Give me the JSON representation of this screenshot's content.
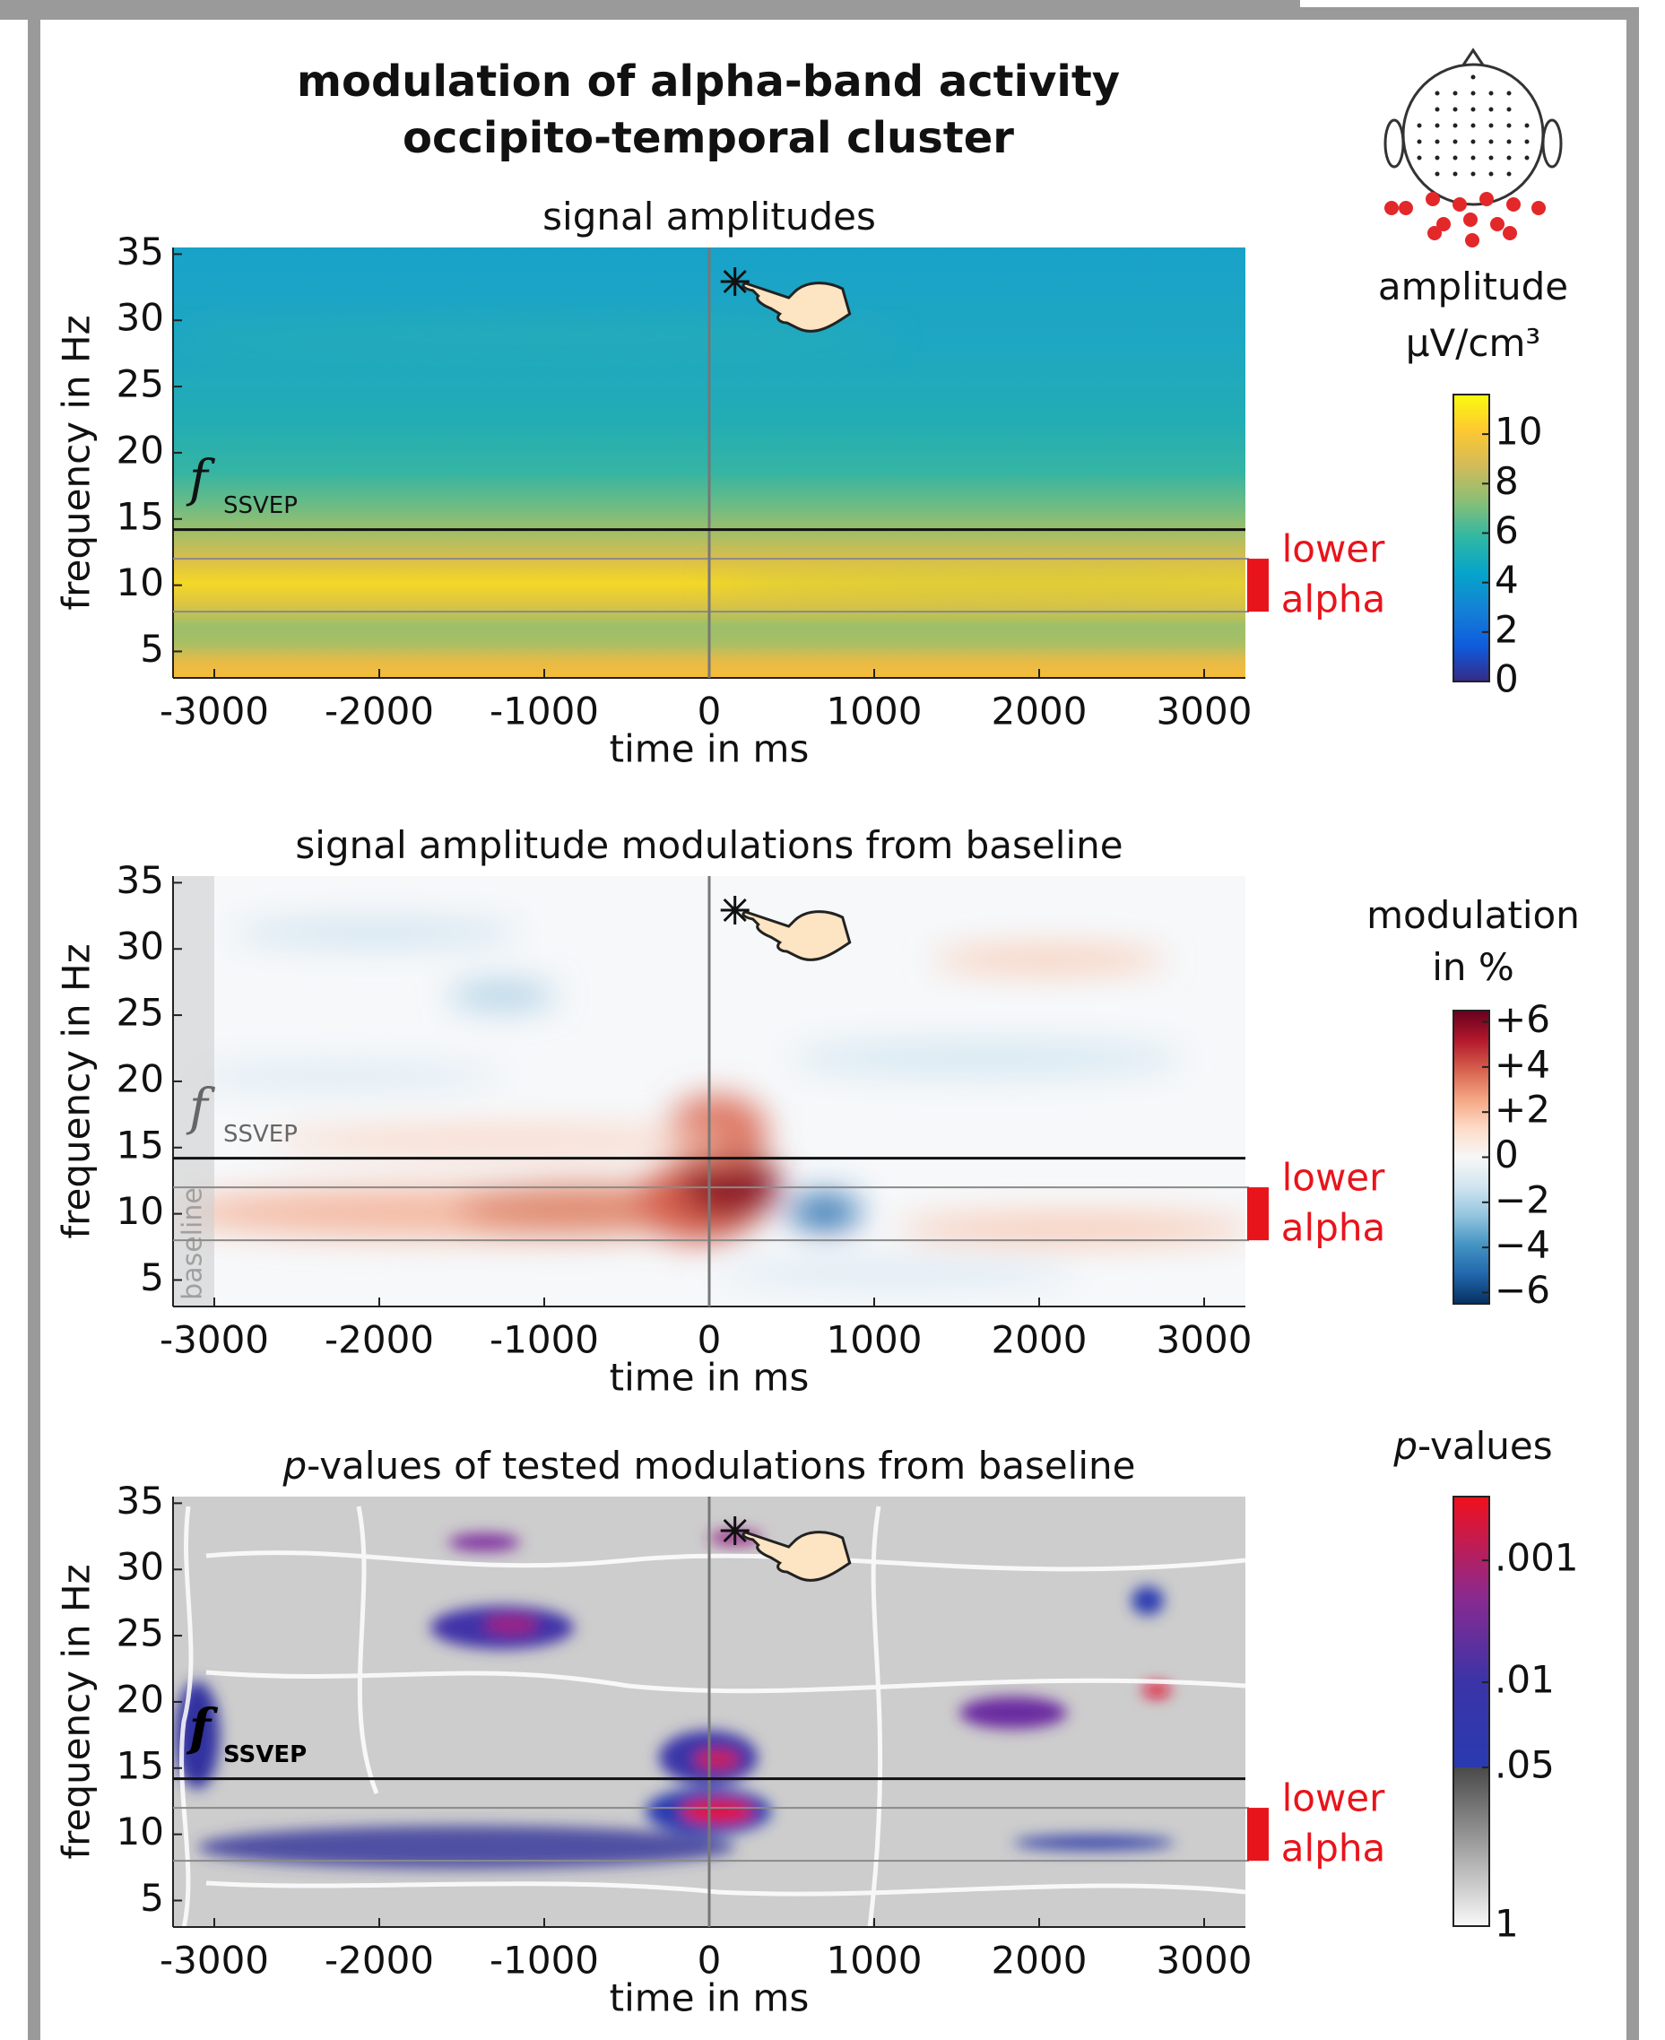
{
  "title": [
    "modulation of alpha-band activity",
    "occipito-temporal cluster"
  ],
  "chart_data": [
    {
      "type": "heatmap",
      "title": "signal amplitudes",
      "xlabel": "time in ms",
      "ylabel": "frequency in Hz",
      "xlim": [
        -3250,
        3250
      ],
      "ylim": [
        3,
        35.5
      ],
      "xticks": [
        -3000,
        -2000,
        -1000,
        0,
        1000,
        2000,
        3000
      ],
      "yticks": [
        5,
        10,
        15,
        20,
        25,
        30,
        35
      ],
      "event_ms": 0,
      "ssvep_hz": 14.2,
      "ssvep_label": "f",
      "ssvep_subscript": "SSVEP",
      "annotation_color": "#111111",
      "band_hz": [
        8,
        12
      ],
      "band_label": [
        "lower",
        "alpha"
      ],
      "band_color": "#e8141b",
      "colorbar": {
        "label": [
          "amplitude",
          "μV/cm³"
        ],
        "lim": [
          0,
          11.6
        ],
        "ticks": [
          0,
          2,
          4,
          6,
          8,
          10
        ],
        "colors": [
          "#352a87",
          "#0f5cdd",
          "#1481d6",
          "#06a4ca",
          "#2eb7a4",
          "#87bf77",
          "#d1bb59",
          "#fec832",
          "#f9fb0e"
        ]
      }
    },
    {
      "type": "heatmap",
      "title": "signal amplitude modulations from baseline",
      "xlabel": "time in ms",
      "ylabel": "frequency in Hz",
      "xlim": [
        -3250,
        3250
      ],
      "ylim": [
        3,
        35.5
      ],
      "xticks": [
        -3000,
        -2000,
        -1000,
        0,
        1000,
        2000,
        3000
      ],
      "yticks": [
        5,
        10,
        15,
        20,
        25,
        30,
        35
      ],
      "event_ms": 0,
      "ssvep_hz": 14.2,
      "ssvep_label": "f",
      "ssvep_subscript": "SSVEP",
      "annotation_color": "#666666",
      "band_hz": [
        8,
        12
      ],
      "band_label": [
        "lower",
        "alpha"
      ],
      "band_color": "#e8141b",
      "baseline_ms": [
        -3250,
        -3000
      ],
      "baseline_label": "baseline",
      "colorbar": {
        "label": [
          "modulation",
          "in %"
        ],
        "lim": [
          -6.5,
          6.5
        ],
        "ticks": [
          {
            "value": 6,
            "label": "+6"
          },
          {
            "value": 4,
            "label": "+4"
          },
          {
            "value": 2,
            "label": "+2"
          },
          0,
          {
            "value": -2,
            "label": "−2"
          },
          {
            "value": -4,
            "label": "−4"
          },
          {
            "value": -6,
            "label": "−6"
          }
        ],
        "colors": [
          "#053061",
          "#2166ac",
          "#4393c3",
          "#92c5de",
          "#d1e5f0",
          "#f7f7f7",
          "#fddbc7",
          "#f4a582",
          "#d6604d",
          "#b2182b",
          "#67001f"
        ]
      }
    },
    {
      "type": "heatmap",
      "title_italic": "p",
      "title": "-values of tested modulations from baseline",
      "xlabel": "time in ms",
      "ylabel": "frequency in Hz",
      "xlim": [
        -3250,
        3250
      ],
      "ylim": [
        3,
        35.5
      ],
      "xticks": [
        -3000,
        -2000,
        -1000,
        0,
        1000,
        2000,
        3000
      ],
      "yticks": [
        5,
        10,
        15,
        20,
        25,
        30,
        35
      ],
      "event_ms": 0,
      "ssvep_hz": 14.2,
      "ssvep_label": "f",
      "ssvep_subscript": "SSVEP",
      "annotation_color": "#000000",
      "band_hz": [
        8,
        12
      ],
      "band_label": [
        "lower",
        "alpha"
      ],
      "band_color": "#e8141b",
      "colorbar": {
        "label_italic": "p",
        "label": [
          "-values"
        ],
        "lim": [
          1,
          0.0003
        ],
        "log": true,
        "ticks": [
          {
            "value": 0.001,
            "label": ".001"
          },
          {
            "value": 0.01,
            "label": ".01"
          },
          {
            "value": 0.05,
            "label": ".05"
          },
          1
        ],
        "color_stops": [
          {
            "value": 1,
            "color": "#f8f8f8"
          },
          {
            "value": 0.05,
            "color": "#4a4a4a"
          },
          {
            "value": 0.0499,
            "color": "#2a3ab0"
          },
          {
            "value": 0.01,
            "color": "#3a34a8"
          },
          {
            "value": 0.002,
            "color": "#8a2a90"
          },
          {
            "value": 0.0003,
            "color": "#f0101c"
          }
        ]
      }
    }
  ]
}
